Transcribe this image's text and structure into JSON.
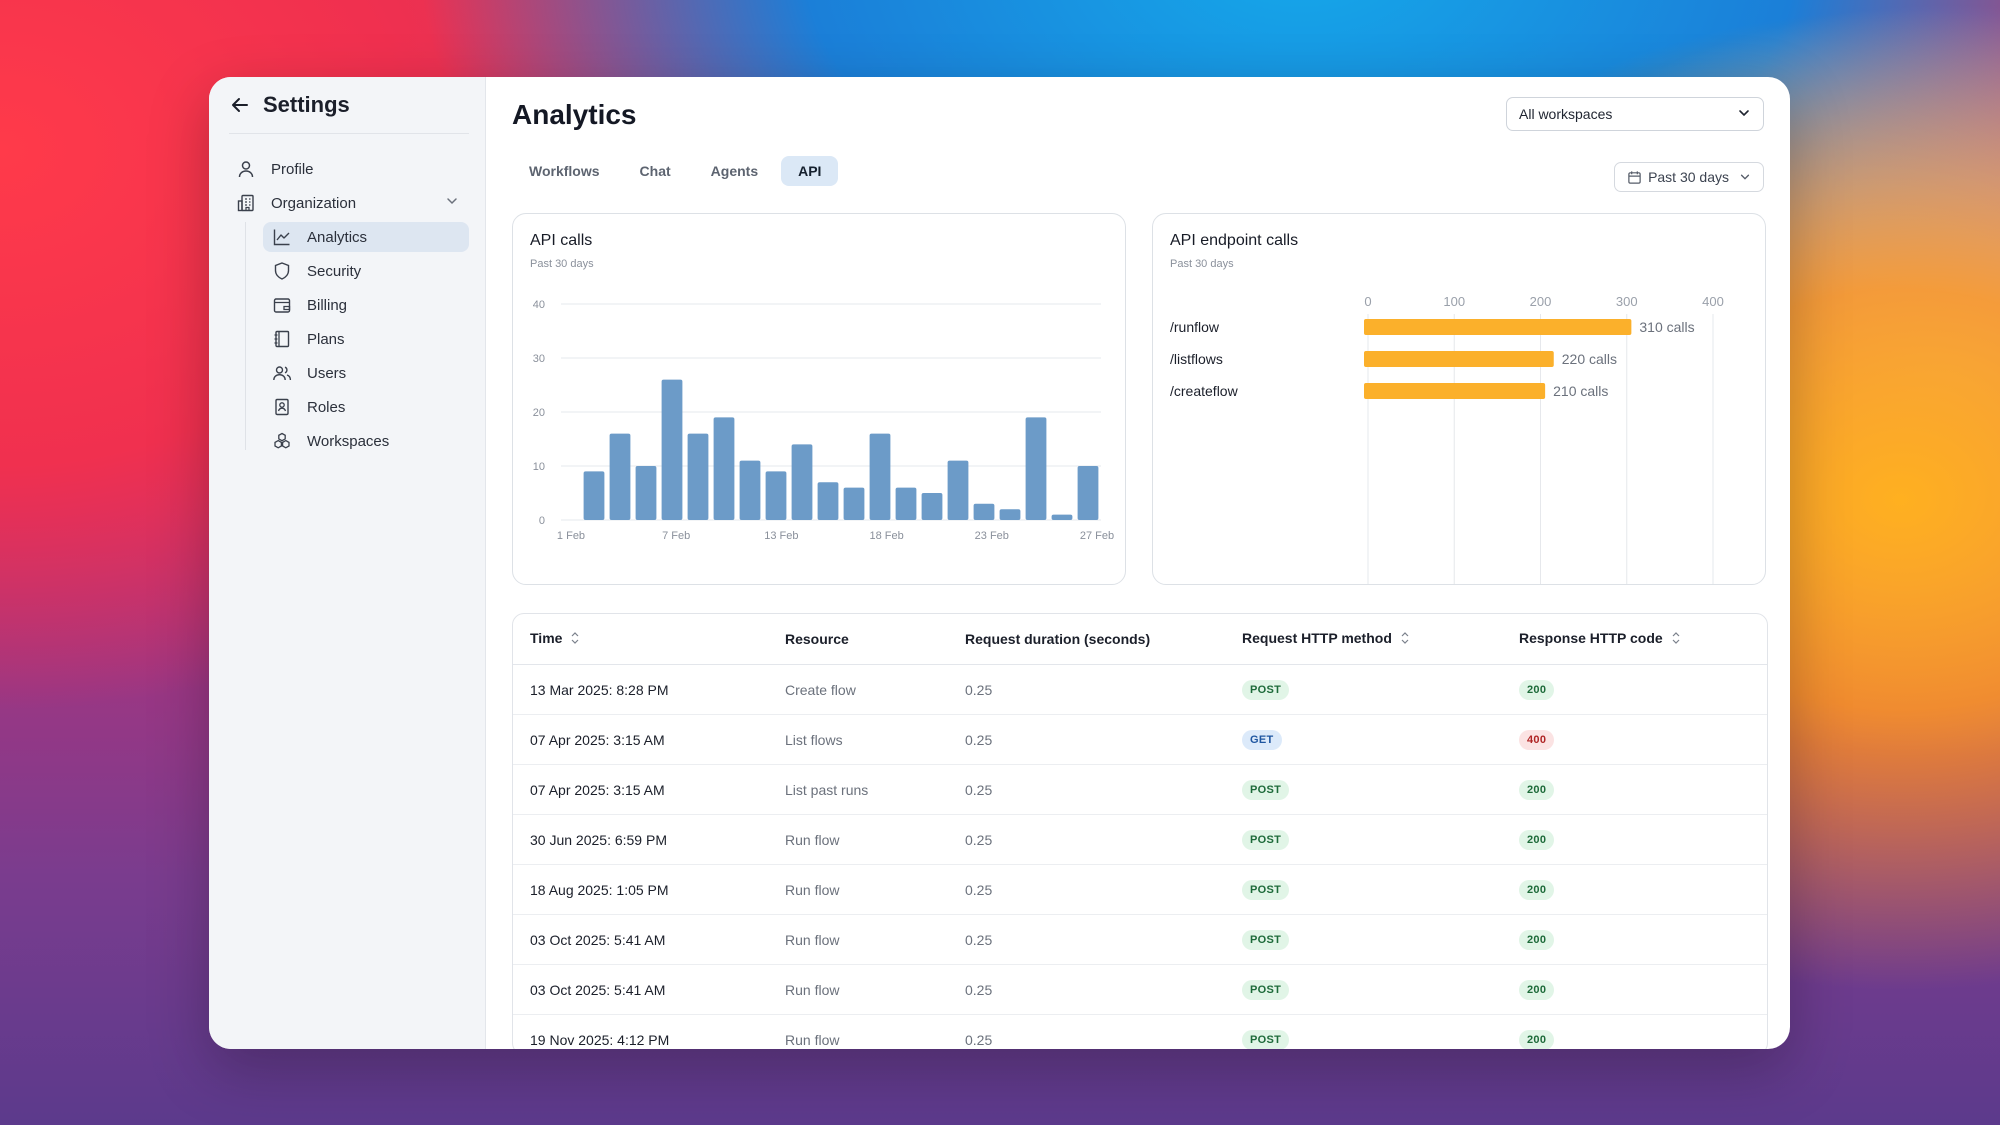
{
  "sidebar": {
    "title": "Settings",
    "items": [
      {
        "label": "Profile",
        "icon": "user-icon"
      },
      {
        "label": "Organization",
        "icon": "building-icon"
      }
    ],
    "subitems": [
      {
        "label": "Analytics",
        "icon": "line-chart-icon",
        "active": true
      },
      {
        "label": "Security",
        "icon": "shield-icon"
      },
      {
        "label": "Billing",
        "icon": "wallet-icon"
      },
      {
        "label": "Plans",
        "icon": "notebook-icon"
      },
      {
        "label": "Users",
        "icon": "users-icon"
      },
      {
        "label": "Roles",
        "icon": "id-badge-icon"
      },
      {
        "label": "Workspaces",
        "icon": "cubes-icon"
      }
    ]
  },
  "header": {
    "title": "Analytics",
    "workspace_select": "All workspaces",
    "date_range": "Past 30 days"
  },
  "tabs": [
    {
      "label": "Workflows"
    },
    {
      "label": "Chat"
    },
    {
      "label": "Agents"
    },
    {
      "label": "API",
      "active": true
    }
  ],
  "chart_data": [
    {
      "type": "bar",
      "title": "API calls",
      "subtitle": "Past 30 days",
      "ylim": [
        0,
        40
      ],
      "yticks": [
        0,
        10,
        20,
        30,
        40
      ],
      "x_tick_labels": [
        "1 Feb",
        "7 Feb",
        "13 Feb",
        "18 Feb",
        "23 Feb",
        "27 Feb"
      ],
      "values": [
        9,
        16,
        10,
        26,
        16,
        19,
        11,
        9,
        14,
        7,
        6,
        16,
        6,
        5,
        11,
        3,
        2,
        19,
        1,
        10
      ],
      "color": "#6c9bc8"
    },
    {
      "type": "bar",
      "orientation": "horizontal",
      "title": "API endpoint calls",
      "subtitle": "Past 30 days",
      "xlim": [
        0,
        400
      ],
      "xticks": [
        0,
        100,
        200,
        300,
        400
      ],
      "categories": [
        "/runflow",
        "/listflows",
        "/createflow"
      ],
      "values": [
        310,
        220,
        210
      ],
      "value_labels": [
        "310 calls",
        "220 calls",
        "210 calls"
      ],
      "color": "#fbb02b"
    }
  ],
  "table": {
    "columns": [
      "Time",
      "Resource",
      "Request duration (seconds)",
      "Request HTTP method",
      "Response HTTP code"
    ],
    "rows": [
      {
        "time": "13 Mar 2025: 8:28 PM",
        "resource": "Create flow",
        "duration": "0.25",
        "method": "POST",
        "code": "200"
      },
      {
        "time": "07 Apr 2025: 3:15 AM",
        "resource": "List flows",
        "duration": "0.25",
        "method": "GET",
        "code": "400"
      },
      {
        "time": "07 Apr 2025: 3:15 AM",
        "resource": "List past runs",
        "duration": "0.25",
        "method": "POST",
        "code": "200"
      },
      {
        "time": "30 Jun 2025: 6:59 PM",
        "resource": "Run flow",
        "duration": "0.25",
        "method": "POST",
        "code": "200"
      },
      {
        "time": "18 Aug 2025: 1:05 PM",
        "resource": "Run flow",
        "duration": "0.25",
        "method": "POST",
        "code": "200"
      },
      {
        "time": "03 Oct 2025: 5:41 AM",
        "resource": "Run flow",
        "duration": "0.25",
        "method": "POST",
        "code": "200"
      },
      {
        "time": "03 Oct 2025: 5:41 AM",
        "resource": "Run flow",
        "duration": "0.25",
        "method": "POST",
        "code": "200"
      },
      {
        "time": "19 Nov 2025: 4:12 PM",
        "resource": "Run flow",
        "duration": "0.25",
        "method": "POST",
        "code": "200"
      }
    ]
  }
}
